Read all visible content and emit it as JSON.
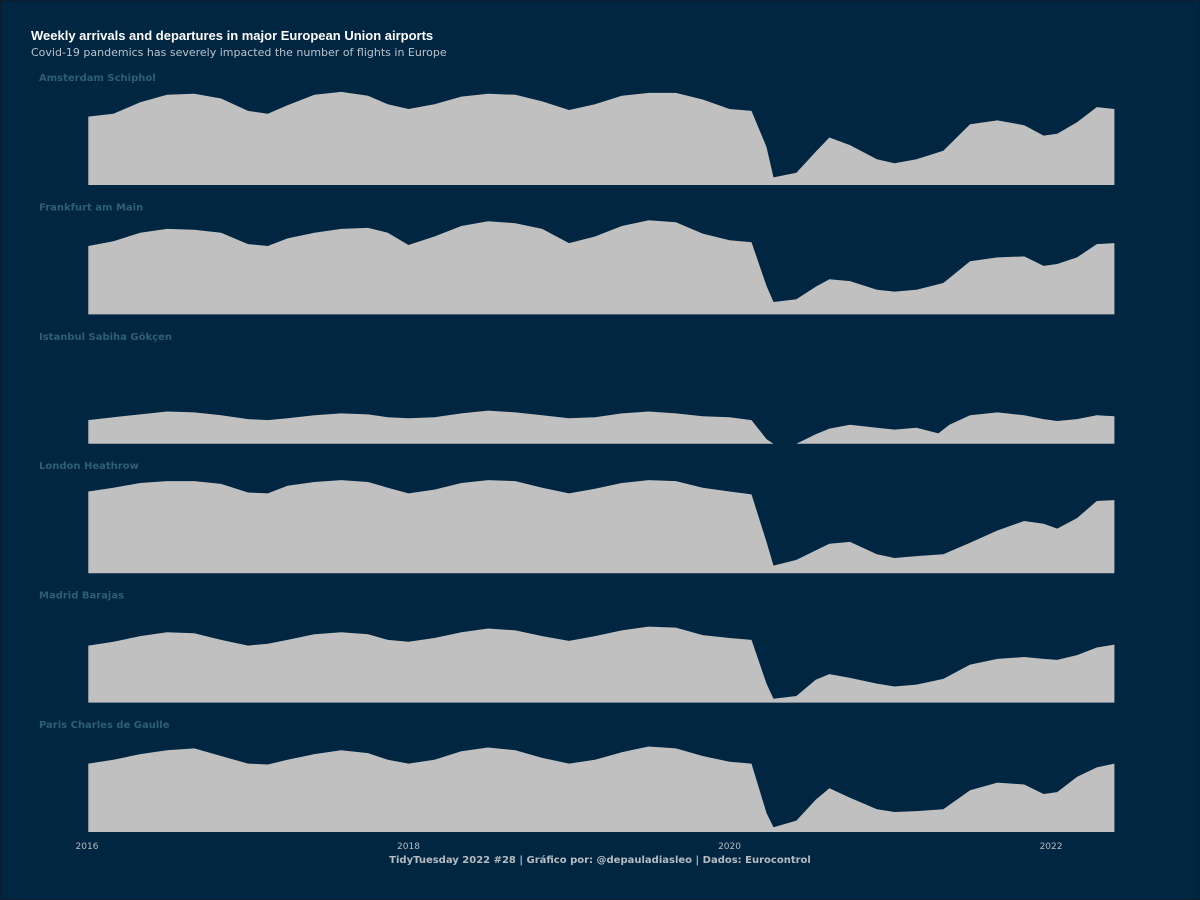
{
  "title": "Weekly arrivals and departures in major European Union airports",
  "subtitle": "Covid-19 pandemics has severely impacted the number of flights in Europe",
  "caption": "TidyTuesday 2022 #28 | Gráfico por: @depauladiasleo | Dados: Eurocontrol",
  "colors": {
    "background": "#002642",
    "area": "#c0c0c0",
    "panel_label": "#2f5f72",
    "title": "#ffffff",
    "text": "#b7bcc0"
  },
  "chart_data": {
    "type": "area",
    "title": "Weekly arrivals and departures in major European Union airports",
    "subtitle": "Covid-19 pandemics has severely impacted the number of flights in Europe",
    "xlabel": "",
    "ylabel": "",
    "x_range": [
      "2016-01-01",
      "2022-05-31"
    ],
    "x_ticks": [
      "2016",
      "2018",
      "2020",
      "2022"
    ],
    "y_min": 0,
    "y_max": 100,
    "grid": false,
    "legend": "none",
    "facets": [
      {
        "name": "Amsterdam Schiphol",
        "points": [
          [
            "2016-01-04",
            72
          ],
          [
            "2016-03-01",
            75
          ],
          [
            "2016-05-01",
            87
          ],
          [
            "2016-07-01",
            95
          ],
          [
            "2016-09-01",
            96
          ],
          [
            "2016-11-01",
            91
          ],
          [
            "2017-01-01",
            78
          ],
          [
            "2017-02-15",
            75
          ],
          [
            "2017-04-01",
            84
          ],
          [
            "2017-06-01",
            95
          ],
          [
            "2017-08-01",
            98
          ],
          [
            "2017-10-01",
            94
          ],
          [
            "2017-11-15",
            85
          ],
          [
            "2018-01-01",
            80
          ],
          [
            "2018-03-01",
            85
          ],
          [
            "2018-05-01",
            93
          ],
          [
            "2018-07-01",
            96
          ],
          [
            "2018-09-01",
            95
          ],
          [
            "2018-11-01",
            88
          ],
          [
            "2019-01-01",
            79
          ],
          [
            "2019-03-01",
            85
          ],
          [
            "2019-05-01",
            94
          ],
          [
            "2019-07-01",
            97
          ],
          [
            "2019-09-01",
            97
          ],
          [
            "2019-11-01",
            90
          ],
          [
            "2020-01-01",
            80
          ],
          [
            "2020-02-20",
            78
          ],
          [
            "2020-03-25",
            40
          ],
          [
            "2020-04-10",
            8
          ],
          [
            "2020-06-01",
            13
          ],
          [
            "2020-07-15",
            35
          ],
          [
            "2020-08-15",
            50
          ],
          [
            "2020-10-01",
            42
          ],
          [
            "2020-12-01",
            27
          ],
          [
            "2021-01-10",
            23
          ],
          [
            "2021-03-01",
            27
          ],
          [
            "2021-05-01",
            36
          ],
          [
            "2021-07-01",
            64
          ],
          [
            "2021-09-01",
            68
          ],
          [
            "2021-11-01",
            63
          ],
          [
            "2021-12-15",
            52
          ],
          [
            "2022-01-15",
            54
          ],
          [
            "2022-03-01",
            66
          ],
          [
            "2022-04-15",
            82
          ],
          [
            "2022-05-25",
            80
          ]
        ]
      },
      {
        "name": "Frankfurt am Main",
        "points": [
          [
            "2016-01-04",
            72
          ],
          [
            "2016-03-01",
            77
          ],
          [
            "2016-05-01",
            86
          ],
          [
            "2016-07-01",
            90
          ],
          [
            "2016-09-01",
            89
          ],
          [
            "2016-11-01",
            86
          ],
          [
            "2017-01-01",
            74
          ],
          [
            "2017-02-15",
            72
          ],
          [
            "2017-04-01",
            80
          ],
          [
            "2017-06-01",
            86
          ],
          [
            "2017-08-01",
            90
          ],
          [
            "2017-10-01",
            91
          ],
          [
            "2017-11-15",
            86
          ],
          [
            "2018-01-01",
            73
          ],
          [
            "2018-03-01",
            82
          ],
          [
            "2018-05-01",
            93
          ],
          [
            "2018-07-01",
            98
          ],
          [
            "2018-09-01",
            96
          ],
          [
            "2018-11-01",
            90
          ],
          [
            "2019-01-01",
            75
          ],
          [
            "2019-03-01",
            82
          ],
          [
            "2019-05-01",
            93
          ],
          [
            "2019-07-01",
            99
          ],
          [
            "2019-09-01",
            97
          ],
          [
            "2019-11-01",
            85
          ],
          [
            "2020-01-01",
            78
          ],
          [
            "2020-02-20",
            76
          ],
          [
            "2020-03-25",
            30
          ],
          [
            "2020-04-10",
            13
          ],
          [
            "2020-06-01",
            16
          ],
          [
            "2020-07-15",
            29
          ],
          [
            "2020-08-15",
            37
          ],
          [
            "2020-10-01",
            35
          ],
          [
            "2020-12-01",
            26
          ],
          [
            "2021-01-10",
            24
          ],
          [
            "2021-03-01",
            26
          ],
          [
            "2021-05-01",
            33
          ],
          [
            "2021-07-01",
            56
          ],
          [
            "2021-09-01",
            60
          ],
          [
            "2021-11-01",
            61
          ],
          [
            "2021-12-15",
            51
          ],
          [
            "2022-01-15",
            53
          ],
          [
            "2022-03-01",
            60
          ],
          [
            "2022-04-15",
            74
          ],
          [
            "2022-05-25",
            75
          ]
        ]
      },
      {
        "name": "Istanbul Sabiha Gökçen",
        "points": [
          [
            "2016-01-04",
            25
          ],
          [
            "2016-03-01",
            28
          ],
          [
            "2016-05-01",
            31
          ],
          [
            "2016-07-01",
            34
          ],
          [
            "2016-09-01",
            33
          ],
          [
            "2016-11-01",
            30
          ],
          [
            "2017-01-01",
            26
          ],
          [
            "2017-02-15",
            25
          ],
          [
            "2017-04-01",
            27
          ],
          [
            "2017-06-01",
            30
          ],
          [
            "2017-08-01",
            32
          ],
          [
            "2017-10-01",
            31
          ],
          [
            "2017-11-15",
            28
          ],
          [
            "2018-01-01",
            27
          ],
          [
            "2018-03-01",
            28
          ],
          [
            "2018-05-01",
            32
          ],
          [
            "2018-07-01",
            35
          ],
          [
            "2018-09-01",
            33
          ],
          [
            "2018-11-01",
            30
          ],
          [
            "2019-01-01",
            27
          ],
          [
            "2019-03-01",
            28
          ],
          [
            "2019-05-01",
            32
          ],
          [
            "2019-07-01",
            34
          ],
          [
            "2019-09-01",
            32
          ],
          [
            "2019-11-01",
            29
          ],
          [
            "2020-01-01",
            28
          ],
          [
            "2020-02-20",
            25
          ],
          [
            "2020-03-25",
            5
          ],
          [
            "2020-04-10",
            0
          ],
          [
            "2020-06-01",
            0
          ],
          [
            "2020-07-15",
            10
          ],
          [
            "2020-08-15",
            16
          ],
          [
            "2020-10-01",
            20
          ],
          [
            "2020-12-01",
            17
          ],
          [
            "2021-01-10",
            15
          ],
          [
            "2021-03-01",
            17
          ],
          [
            "2021-04-20",
            11
          ],
          [
            "2021-05-15",
            20
          ],
          [
            "2021-07-01",
            30
          ],
          [
            "2021-09-01",
            33
          ],
          [
            "2021-11-01",
            30
          ],
          [
            "2021-12-15",
            26
          ],
          [
            "2022-01-15",
            24
          ],
          [
            "2022-03-01",
            26
          ],
          [
            "2022-04-15",
            30
          ],
          [
            "2022-05-25",
            29
          ]
        ]
      },
      {
        "name": "London Heathrow",
        "points": [
          [
            "2016-01-04",
            86
          ],
          [
            "2016-03-01",
            90
          ],
          [
            "2016-05-01",
            95
          ],
          [
            "2016-07-01",
            97
          ],
          [
            "2016-09-01",
            97
          ],
          [
            "2016-11-01",
            94
          ],
          [
            "2017-01-01",
            85
          ],
          [
            "2017-02-15",
            84
          ],
          [
            "2017-04-01",
            92
          ],
          [
            "2017-06-01",
            96
          ],
          [
            "2017-08-01",
            98
          ],
          [
            "2017-10-01",
            96
          ],
          [
            "2017-11-15",
            90
          ],
          [
            "2018-01-01",
            84
          ],
          [
            "2018-03-01",
            88
          ],
          [
            "2018-05-01",
            95
          ],
          [
            "2018-07-01",
            98
          ],
          [
            "2018-09-01",
            97
          ],
          [
            "2018-11-01",
            90
          ],
          [
            "2019-01-01",
            84
          ],
          [
            "2019-03-01",
            89
          ],
          [
            "2019-05-01",
            95
          ],
          [
            "2019-07-01",
            98
          ],
          [
            "2019-09-01",
            97
          ],
          [
            "2019-11-01",
            90
          ],
          [
            "2020-01-01",
            86
          ],
          [
            "2020-02-20",
            83
          ],
          [
            "2020-03-25",
            33
          ],
          [
            "2020-04-10",
            8
          ],
          [
            "2020-06-01",
            14
          ],
          [
            "2020-07-15",
            24
          ],
          [
            "2020-08-15",
            31
          ],
          [
            "2020-10-01",
            33
          ],
          [
            "2020-12-01",
            20
          ],
          [
            "2021-01-10",
            16
          ],
          [
            "2021-03-01",
            18
          ],
          [
            "2021-05-01",
            20
          ],
          [
            "2021-07-01",
            32
          ],
          [
            "2021-09-01",
            45
          ],
          [
            "2021-11-01",
            55
          ],
          [
            "2021-12-15",
            52
          ],
          [
            "2022-01-15",
            47
          ],
          [
            "2022-03-01",
            58
          ],
          [
            "2022-04-15",
            76
          ],
          [
            "2022-05-25",
            77
          ]
        ]
      },
      {
        "name": "Madrid Barajas",
        "points": [
          [
            "2016-01-04",
            60
          ],
          [
            "2016-03-01",
            64
          ],
          [
            "2016-05-01",
            70
          ],
          [
            "2016-07-01",
            74
          ],
          [
            "2016-09-01",
            73
          ],
          [
            "2016-11-01",
            66
          ],
          [
            "2017-01-01",
            60
          ],
          [
            "2017-02-15",
            62
          ],
          [
            "2017-04-01",
            66
          ],
          [
            "2017-06-01",
            72
          ],
          [
            "2017-08-01",
            74
          ],
          [
            "2017-10-01",
            72
          ],
          [
            "2017-11-15",
            66
          ],
          [
            "2018-01-01",
            64
          ],
          [
            "2018-03-01",
            68
          ],
          [
            "2018-05-01",
            74
          ],
          [
            "2018-07-01",
            78
          ],
          [
            "2018-09-01",
            76
          ],
          [
            "2018-11-01",
            70
          ],
          [
            "2019-01-01",
            65
          ],
          [
            "2019-03-01",
            70
          ],
          [
            "2019-05-01",
            76
          ],
          [
            "2019-07-01",
            80
          ],
          [
            "2019-09-01",
            79
          ],
          [
            "2019-11-01",
            71
          ],
          [
            "2020-01-01",
            68
          ],
          [
            "2020-02-20",
            66
          ],
          [
            "2020-03-25",
            20
          ],
          [
            "2020-04-10",
            4
          ],
          [
            "2020-06-01",
            7
          ],
          [
            "2020-07-15",
            24
          ],
          [
            "2020-08-15",
            30
          ],
          [
            "2020-10-01",
            26
          ],
          [
            "2020-12-01",
            20
          ],
          [
            "2021-01-10",
            17
          ],
          [
            "2021-03-01",
            19
          ],
          [
            "2021-05-01",
            25
          ],
          [
            "2021-07-01",
            40
          ],
          [
            "2021-09-01",
            46
          ],
          [
            "2021-11-01",
            48
          ],
          [
            "2021-12-15",
            46
          ],
          [
            "2022-01-15",
            45
          ],
          [
            "2022-03-01",
            50
          ],
          [
            "2022-04-15",
            58
          ],
          [
            "2022-05-25",
            61
          ]
        ]
      },
      {
        "name": "Paris Charles de Gaulle",
        "points": [
          [
            "2016-01-04",
            72
          ],
          [
            "2016-03-01",
            76
          ],
          [
            "2016-05-01",
            82
          ],
          [
            "2016-07-01",
            86
          ],
          [
            "2016-09-01",
            88
          ],
          [
            "2016-11-01",
            80
          ],
          [
            "2017-01-01",
            72
          ],
          [
            "2017-02-15",
            71
          ],
          [
            "2017-04-01",
            76
          ],
          [
            "2017-06-01",
            82
          ],
          [
            "2017-08-01",
            86
          ],
          [
            "2017-10-01",
            83
          ],
          [
            "2017-11-15",
            76
          ],
          [
            "2018-01-01",
            72
          ],
          [
            "2018-03-01",
            76
          ],
          [
            "2018-05-01",
            85
          ],
          [
            "2018-07-01",
            89
          ],
          [
            "2018-09-01",
            86
          ],
          [
            "2018-11-01",
            78
          ],
          [
            "2019-01-01",
            72
          ],
          [
            "2019-03-01",
            76
          ],
          [
            "2019-05-01",
            84
          ],
          [
            "2019-07-01",
            90
          ],
          [
            "2019-09-01",
            88
          ],
          [
            "2019-11-01",
            80
          ],
          [
            "2020-01-01",
            74
          ],
          [
            "2020-02-20",
            72
          ],
          [
            "2020-03-25",
            20
          ],
          [
            "2020-04-10",
            5
          ],
          [
            "2020-06-01",
            12
          ],
          [
            "2020-07-15",
            34
          ],
          [
            "2020-08-15",
            46
          ],
          [
            "2020-10-01",
            36
          ],
          [
            "2020-12-01",
            24
          ],
          [
            "2021-01-10",
            21
          ],
          [
            "2021-03-01",
            22
          ],
          [
            "2021-05-01",
            24
          ],
          [
            "2021-07-01",
            44
          ],
          [
            "2021-09-01",
            52
          ],
          [
            "2021-11-01",
            50
          ],
          [
            "2021-12-15",
            40
          ],
          [
            "2022-01-15",
            42
          ],
          [
            "2022-03-01",
            58
          ],
          [
            "2022-04-15",
            68
          ],
          [
            "2022-05-25",
            72
          ]
        ]
      }
    ]
  }
}
